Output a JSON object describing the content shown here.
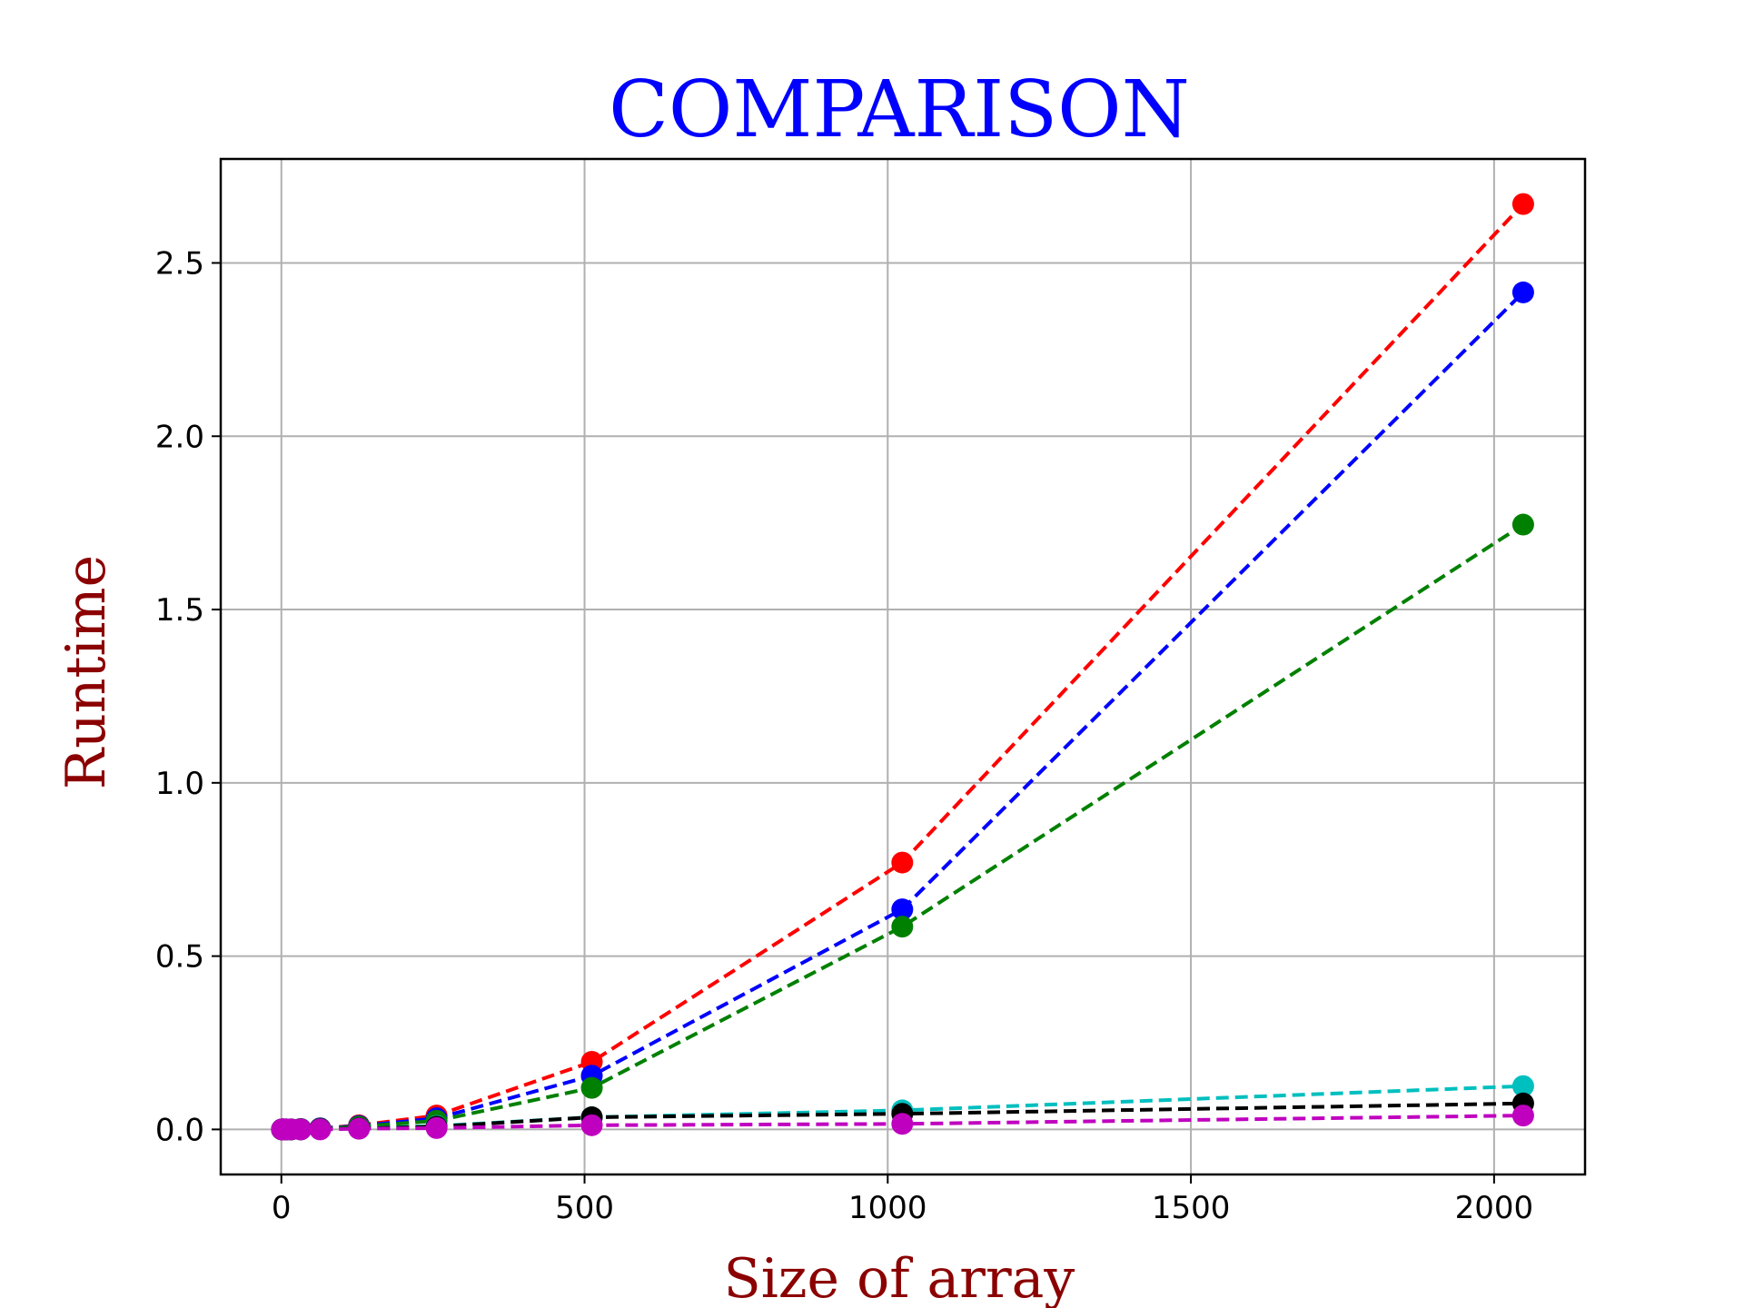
{
  "chart_data": {
    "type": "line",
    "title": "COMPARISON",
    "xlabel": "Size of array",
    "ylabel": "Runtime",
    "title_color": "#0000ff",
    "label_color": "#8b0000",
    "xlim": [
      -100,
      2150
    ],
    "ylim": [
      -0.13,
      2.8
    ],
    "xticks": [
      0,
      500,
      1000,
      1500,
      2000
    ],
    "xtick_labels": [
      "0",
      "500",
      "1000",
      "1500",
      "2000"
    ],
    "yticks": [
      0.0,
      0.5,
      1.0,
      1.5,
      2.0,
      2.5
    ],
    "ytick_labels": [
      "0.0",
      "0.5",
      "1.0",
      "1.5",
      "2.0",
      "2.5"
    ],
    "grid": true,
    "line_style": "dashed",
    "marker": "circle",
    "x": [
      1,
      2,
      4,
      8,
      16,
      32,
      64,
      128,
      256,
      512,
      1024,
      2048
    ],
    "series": [
      {
        "color": "#ff0000",
        "values": [
          0,
          0,
          0,
          0,
          0,
          0.001,
          0.003,
          0.012,
          0.04,
          0.195,
          0.77,
          2.67
        ]
      },
      {
        "color": "#0000ff",
        "values": [
          0,
          0,
          0,
          0,
          0,
          0.001,
          0.003,
          0.01,
          0.032,
          0.155,
          0.635,
          2.415
        ]
      },
      {
        "color": "#008000",
        "values": [
          0,
          0,
          0,
          0,
          0,
          0.001,
          0.002,
          0.008,
          0.025,
          0.12,
          0.585,
          1.745
        ]
      },
      {
        "color": "#00bfbf",
        "values": [
          0,
          0,
          0,
          0,
          0,
          0,
          0.001,
          0.003,
          0.01,
          0.035,
          0.055,
          0.125
        ]
      },
      {
        "color": "#000000",
        "values": [
          0,
          0,
          0,
          0,
          0,
          0,
          0.001,
          0.003,
          0.008,
          0.035,
          0.045,
          0.075
        ]
      },
      {
        "color": "#bf00bf",
        "values": [
          0,
          0,
          0,
          0,
          0,
          0,
          0,
          0.002,
          0.004,
          0.012,
          0.016,
          0.04
        ]
      }
    ]
  }
}
